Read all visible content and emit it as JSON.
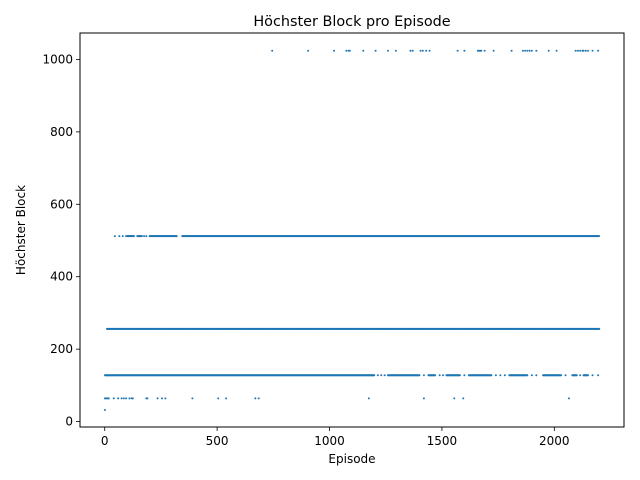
{
  "chart_data": {
    "type": "scatter",
    "title": "Höchster Block pro Episode",
    "xlabel": "Episode",
    "ylabel": "Höchster Block",
    "xlim": [
      -110,
      2310
    ],
    "ylim": [
      -15,
      1073
    ],
    "xticks": [
      0,
      500,
      1000,
      1500,
      2000
    ],
    "yticks": [
      0,
      200,
      400,
      600,
      800,
      1000
    ],
    "grid": false,
    "legend": "none",
    "color": "#1f77b4",
    "n_episodes": 2200,
    "bands": [
      {
        "y": 32,
        "x": [
          1
        ]
      },
      {
        "y": 64,
        "x": [
          1,
          5,
          10,
          15,
          18,
          40,
          60,
          75,
          85,
          95,
          110,
          120,
          125,
          185,
          190,
          235,
          255,
          270,
          390,
          505,
          540,
          670,
          685,
          1175,
          1420,
          1555,
          1595,
          2065
        ]
      },
      {
        "y": 128,
        "x_ranges": [
          [
            1,
            1200
          ],
          [
            1260,
            1400
          ],
          [
            1440,
            1470
          ],
          [
            1520,
            1580
          ],
          [
            1620,
            1720
          ],
          [
            1800,
            1880
          ],
          [
            1950,
            2030
          ],
          [
            2080,
            2100
          ],
          [
            2130,
            2150
          ]
        ],
        "x": [
          1215,
          1230,
          1245,
          1420,
          1490,
          1505,
          1600,
          1740,
          1760,
          1780,
          1900,
          1920,
          2050,
          2115,
          2170,
          2195
        ]
      },
      {
        "y": 256,
        "x_ranges": [
          [
            10,
            2200
          ]
        ]
      },
      {
        "y": 512,
        "x_ranges": [
          [
            100,
            130
          ],
          [
            145,
            165
          ],
          [
            200,
            320
          ],
          [
            345,
            2200
          ]
        ],
        "x": [
          45,
          65,
          80,
          95,
          175,
          185
        ]
      },
      {
        "y": 1024,
        "x": [
          745,
          905,
          1020,
          1075,
          1085,
          1090,
          1150,
          1205,
          1260,
          1295,
          1360,
          1370,
          1405,
          1415,
          1430,
          1445,
          1570,
          1600,
          1660,
          1665,
          1670,
          1675,
          1690,
          1730,
          1810,
          1860,
          1870,
          1880,
          1890,
          1900,
          1920,
          1975,
          2010,
          2095,
          2105,
          2115,
          2125,
          2130,
          2140,
          2150,
          2170,
          2195
        ]
      }
    ]
  }
}
